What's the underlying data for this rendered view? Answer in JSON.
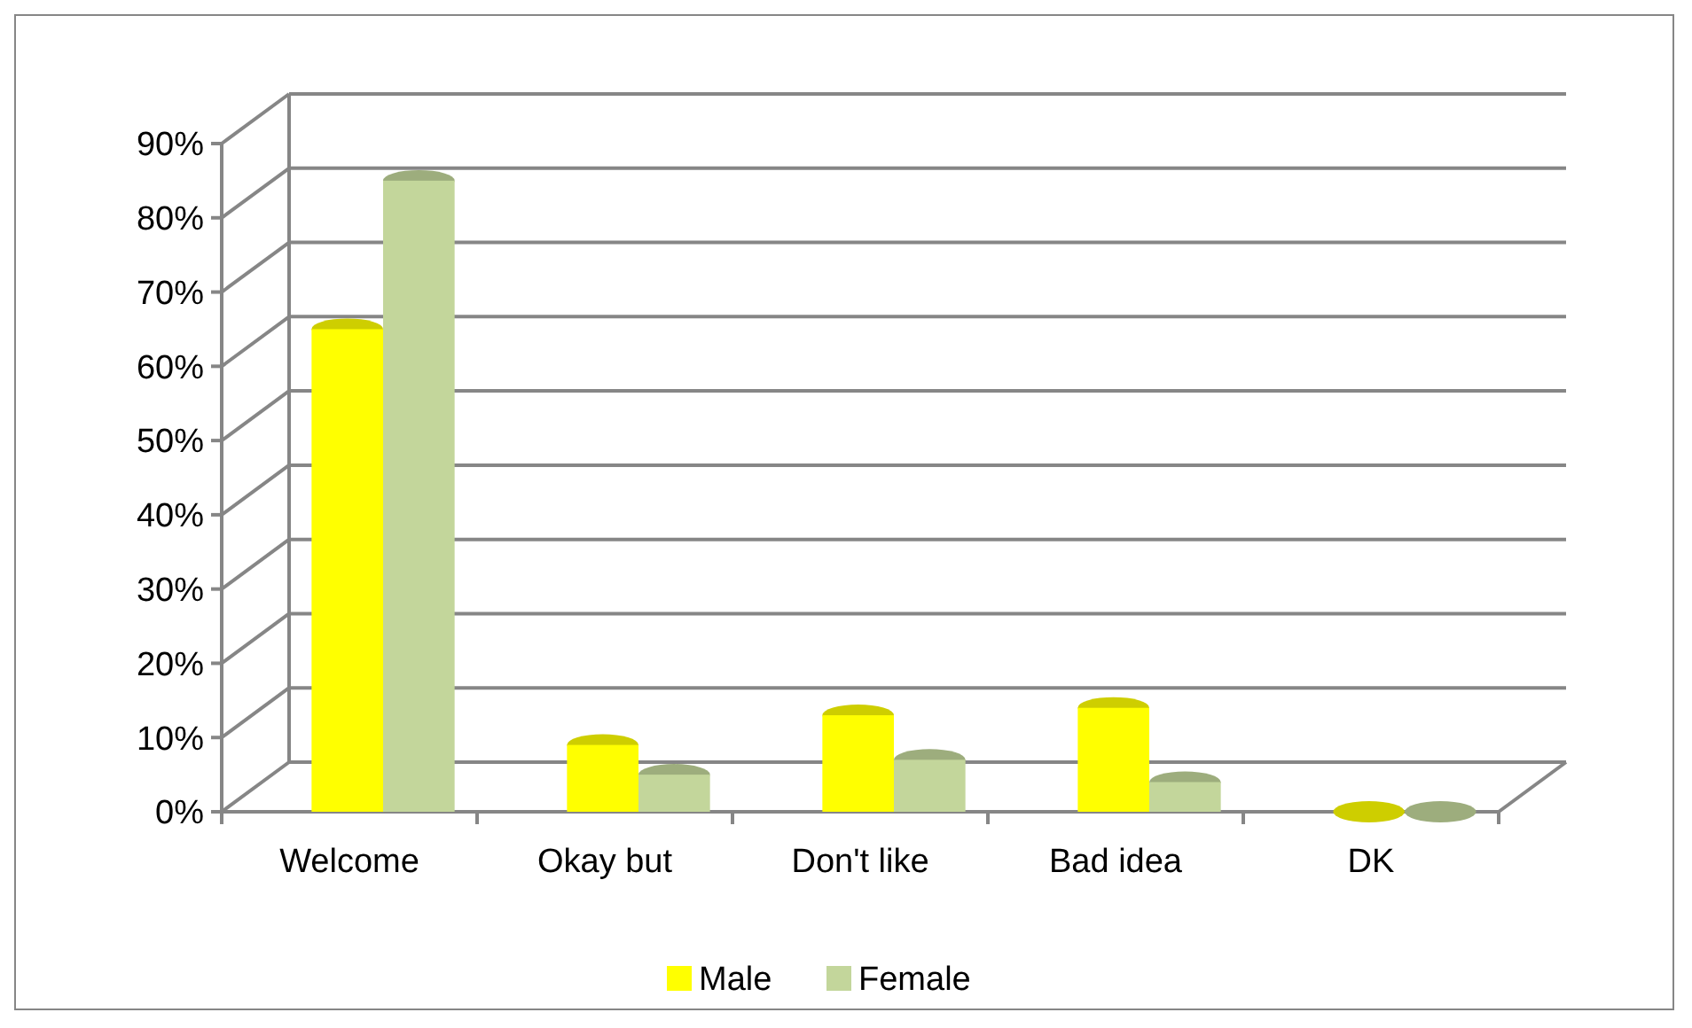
{
  "chart_data": {
    "type": "bar",
    "categories": [
      "Welcome",
      "Okay but",
      "Don't like",
      "Bad idea",
      "DK"
    ],
    "series": [
      {
        "name": "Male",
        "color": "#ffff00",
        "values": [
          0.65,
          0.09,
          0.13,
          0.14,
          0
        ]
      },
      {
        "name": "Female",
        "color": "#c3d69b",
        "values": [
          0.85,
          0.05,
          0.07,
          0.04,
          0
        ]
      }
    ],
    "ylim": [
      0,
      0.9
    ],
    "yticks": [
      {
        "value": 0,
        "label": "0%"
      },
      {
        "value": 0.1,
        "label": "10%"
      },
      {
        "value": 0.2,
        "label": "20%"
      },
      {
        "value": 0.3,
        "label": "30%"
      },
      {
        "value": 0.4,
        "label": "40%"
      },
      {
        "value": 0.5,
        "label": "50%"
      },
      {
        "value": 0.6,
        "label": "60%"
      },
      {
        "value": 0.7,
        "label": "70%"
      },
      {
        "value": 0.8,
        "label": "80%"
      },
      {
        "value": 0.9,
        "label": "90%"
      }
    ],
    "grid": "y",
    "legend": "bottom"
  }
}
